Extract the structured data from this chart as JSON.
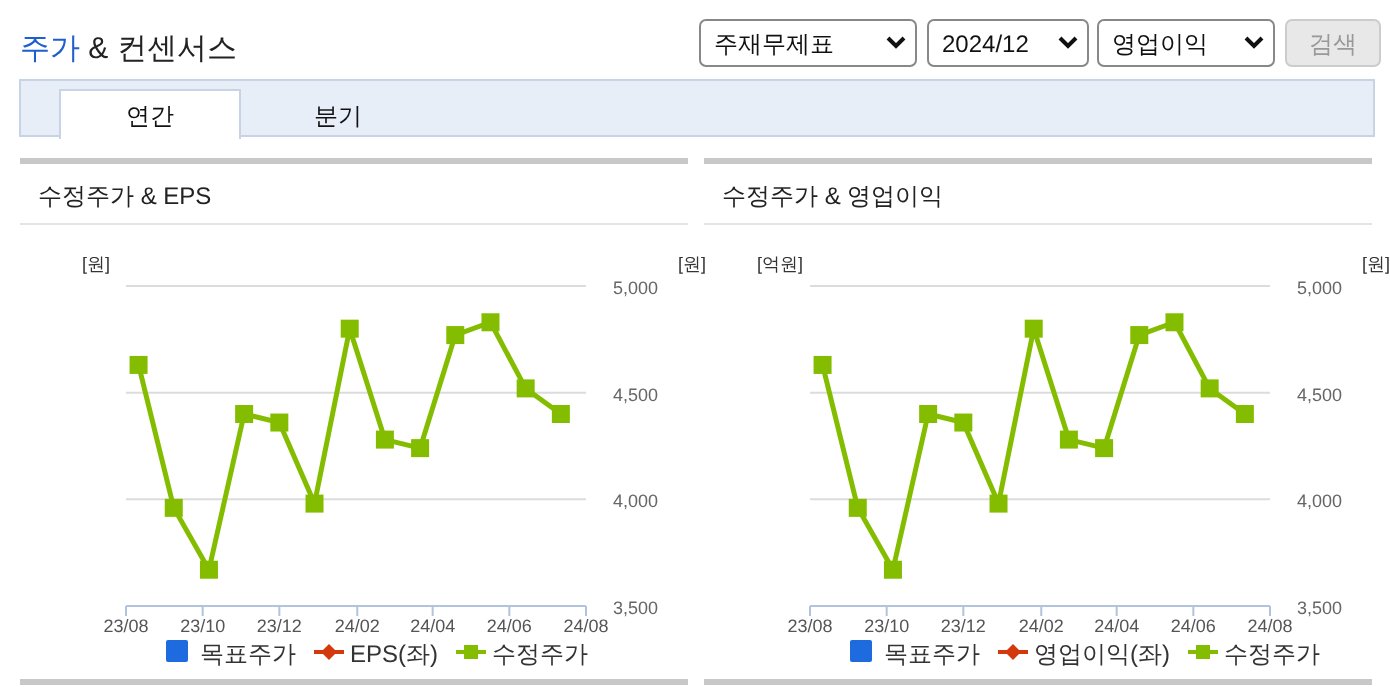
{
  "chart_data": [
    {
      "type": "other",
      "title": "주가 & 컨센서스",
      "annotations": [
        "주재무제표",
        "2024/12",
        "영업이익",
        "검색",
        "연간",
        "분기"
      ]
    },
    {
      "type": "line",
      "title": "수정주가 & EPS",
      "ylabel": "[원]",
      "y2label": "[원]",
      "x": [
        "2023-08-11",
        "2023-09-08",
        "2023-10-06",
        "2023-11-03",
        "2023-12-01",
        "2023-12-29",
        "2024-01-26",
        "2024-02-23",
        "2024-03-22",
        "2024-04-19",
        "2024-05-17",
        "2024-06-14",
        "2024-07-12"
      ],
      "xlim": [
        "2023-08",
        "2024-08"
      ],
      "xticks": [
        {
          "value": "2023-08",
          "label": "23/08"
        },
        {
          "value": "2023-10",
          "label": "23/10"
        },
        {
          "value": "2023-12",
          "label": "23/12"
        },
        {
          "value": "2024-02",
          "label": "24/02"
        },
        {
          "value": "2024-04",
          "label": "24/04"
        },
        {
          "value": "2024-06",
          "label": "24/06"
        },
        {
          "value": "2024-08",
          "label": "24/08"
        }
      ],
      "y2lim": [
        3500,
        5000
      ],
      "y2ticks": [
        {
          "value": 3500,
          "label": "3,500"
        },
        {
          "value": 4000,
          "label": "4,000"
        },
        {
          "value": 4500,
          "label": "4,500"
        },
        {
          "value": 5000,
          "label": "5,000"
        }
      ],
      "grid": "y",
      "legend": "bottom",
      "tick_labels": "x",
      "series": [
        {
          "name": "목표주가",
          "type": "bar",
          "color": "#1e6be0",
          "values": [
            null,
            null,
            null,
            null,
            null,
            null,
            null,
            null,
            null,
            null,
            null,
            null,
            null
          ]
        },
        {
          "name": "EPS(좌)",
          "type": "line",
          "marker": "diamond",
          "color": "#d4380d",
          "values": [
            null,
            null,
            null,
            null,
            null,
            null,
            null,
            null,
            null,
            null,
            null,
            null,
            null
          ]
        },
        {
          "name": "수정주가",
          "type": "line",
          "marker": "square",
          "axis": "y2",
          "color": "#84bd00",
          "values": [
            4630,
            3960,
            3670,
            4400,
            4360,
            3980,
            4800,
            4280,
            4240,
            4770,
            4830,
            4520,
            4400
          ]
        }
      ]
    },
    {
      "type": "line",
      "title": "수정주가 & 영업이익",
      "ylabel": "[억원]",
      "y2label": "[원]",
      "x": [
        "2023-08-11",
        "2023-09-08",
        "2023-10-06",
        "2023-11-03",
        "2023-12-01",
        "2023-12-29",
        "2024-01-26",
        "2024-02-23",
        "2024-03-22",
        "2024-04-19",
        "2024-05-17",
        "2024-06-14",
        "2024-07-12"
      ],
      "xlim": [
        "2023-08",
        "2024-08"
      ],
      "xticks": [
        {
          "value": "2023-08",
          "label": "23/08"
        },
        {
          "value": "2023-10",
          "label": "23/10"
        },
        {
          "value": "2023-12",
          "label": "23/12"
        },
        {
          "value": "2024-02",
          "label": "24/02"
        },
        {
          "value": "2024-04",
          "label": "24/04"
        },
        {
          "value": "2024-06",
          "label": "24/06"
        },
        {
          "value": "2024-08",
          "label": "24/08"
        }
      ],
      "y2lim": [
        3500,
        5000
      ],
      "y2ticks": [
        {
          "value": 3500,
          "label": "3,500"
        },
        {
          "value": 4000,
          "label": "4,000"
        },
        {
          "value": 4500,
          "label": "4,500"
        },
        {
          "value": 5000,
          "label": "5,000"
        }
      ],
      "grid": "y",
      "legend": "bottom",
      "tick_labels": "x",
      "series": [
        {
          "name": "목표주가",
          "type": "bar",
          "color": "#1e6be0",
          "values": [
            null,
            null,
            null,
            null,
            null,
            null,
            null,
            null,
            null,
            null,
            null,
            null,
            null
          ]
        },
        {
          "name": "영업이익(좌)",
          "type": "line",
          "marker": "diamond",
          "color": "#d4380d",
          "values": [
            null,
            null,
            null,
            null,
            null,
            null,
            null,
            null,
            null,
            null,
            null,
            null,
            null
          ]
        },
        {
          "name": "수정주가",
          "type": "line",
          "marker": "square",
          "axis": "y2",
          "color": "#84bd00",
          "values": [
            4630,
            3960,
            3670,
            4400,
            4360,
            3980,
            4800,
            4280,
            4240,
            4770,
            4830,
            4520,
            4400
          ]
        }
      ]
    }
  ]
}
